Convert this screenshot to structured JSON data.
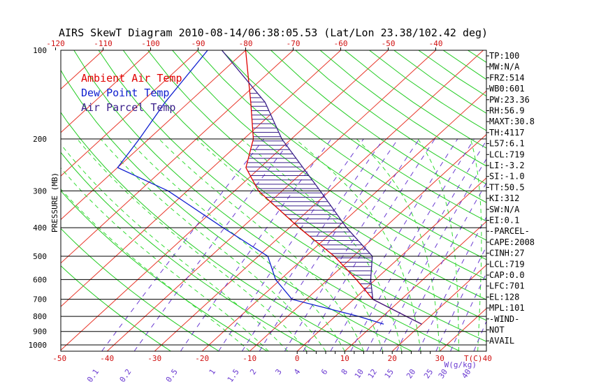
{
  "title": "AIRS SkewT Diagram 2010-08-14/06:38:05.53 (Lat/Lon 23.38/102.42 deg)",
  "chart_data": {
    "type": "skewt",
    "ylabel": "PRESSURE (MB)",
    "xlabel_units": "T(C)",
    "mixing_units": "W(g/kg)",
    "colors": {
      "isotherm": "#e8372a",
      "dry_adiabat": "#22cc22",
      "moist_adiabat": "#33dd33",
      "mixing_ratio": "#6a3ad1",
      "ambient": "#e00000",
      "dewpoint": "#1020d0",
      "parcel": "#3a1f8a",
      "hatch": "#3a1f8a",
      "bottom_label": "#d01010"
    },
    "pressure_levels": [
      100,
      200,
      300,
      400,
      500,
      600,
      700,
      800,
      900,
      1000
    ],
    "top_temp_ticks": [
      -120,
      -110,
      -100,
      -90,
      -80,
      -70,
      -60,
      -50,
      -40
    ],
    "bottom_temp_ticks": [
      -50,
      -40,
      -30,
      -20,
      -10,
      0,
      10,
      20,
      30,
      40
    ],
    "bottom_small_ticks": [
      0,
      2,
      4,
      6,
      8,
      10,
      12,
      14,
      16,
      18,
      20,
      22,
      24,
      26,
      28
    ],
    "mixing_ratios": [
      0.1,
      0.2,
      0.5,
      1,
      1.5,
      2,
      3,
      4,
      6,
      8,
      10,
      12,
      15,
      20,
      25,
      30,
      40
    ],
    "legend": [
      {
        "label": "Ambient Air Temp",
        "color": "#e00000"
      },
      {
        "label": "Dew Point Temp",
        "color": "#1020d0"
      },
      {
        "label": "Air Parcel Temp",
        "color": "#3a1f8a"
      }
    ],
    "series": [
      {
        "name": "Ambient Air Temp",
        "points": [
          [
            100,
            -80
          ],
          [
            150,
            -67
          ],
          [
            200,
            -58
          ],
          [
            250,
            -53
          ],
          [
            300,
            -45
          ],
          [
            400,
            -28
          ],
          [
            500,
            -14
          ],
          [
            600,
            -4
          ],
          [
            700,
            4
          ],
          [
            800,
            15
          ],
          [
            850,
            20
          ]
        ]
      },
      {
        "name": "Dew Point Temp",
        "points": [
          [
            100,
            -88
          ],
          [
            150,
            -85
          ],
          [
            200,
            -82
          ],
          [
            250,
            -80
          ],
          [
            300,
            -64
          ],
          [
            400,
            -44
          ],
          [
            500,
            -28
          ],
          [
            600,
            -21
          ],
          [
            700,
            -13
          ],
          [
            800,
            5
          ],
          [
            850,
            12
          ]
        ]
      },
      {
        "name": "Air Parcel Temp",
        "points": [
          [
            100,
            -85
          ],
          [
            150,
            -64
          ],
          [
            200,
            -52
          ],
          [
            250,
            -41
          ],
          [
            300,
            -32
          ],
          [
            400,
            -18
          ],
          [
            500,
            -6
          ],
          [
            600,
            -1
          ],
          [
            700,
            4
          ],
          [
            800,
            15
          ],
          [
            850,
            20
          ]
        ]
      }
    ]
  },
  "indices": [
    "TP:100",
    "MW:N/A",
    "FRZ:514",
    "WB0:601",
    "PW:23.36",
    "RH:56.9",
    "MAXT:30.8",
    "TH:4117",
    "L57:6.1",
    "LCL:719",
    "LI:-3.2",
    "SI:-1.0",
    "TT:50.5",
    "KI:312",
    "SW:N/A",
    "EI:0.1",
    "-PARCEL-",
    "CAPE:2008",
    "CINH:27",
    "LCL:719",
    "CAP:0.0",
    "LFC:701",
    "EL:128",
    "MPL:101",
    "-WIND-",
    "NOT",
    "AVAIL"
  ]
}
